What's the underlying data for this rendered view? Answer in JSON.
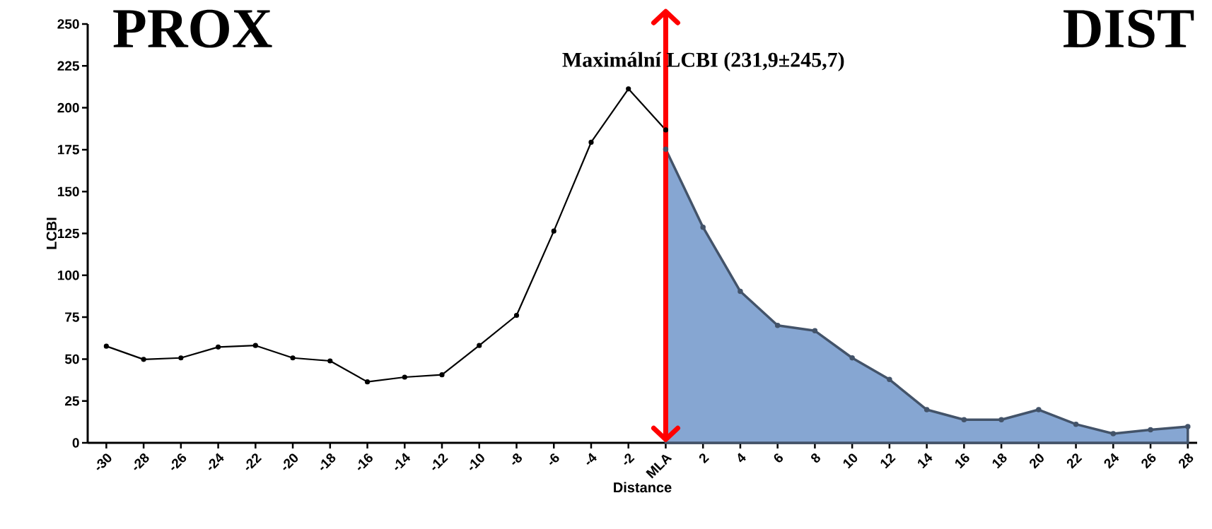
{
  "chart_data": {
    "type": "line",
    "x": [
      -30,
      -28,
      -26,
      -24,
      -22,
      -20,
      -18,
      -16,
      -14,
      -12,
      -10,
      -8,
      -6,
      -4,
      -2,
      0,
      2,
      4,
      6,
      8,
      10,
      12,
      14,
      16,
      18,
      20,
      22,
      24,
      26,
      28
    ],
    "xlim": [
      -31,
      28.5
    ],
    "xticks": [
      -30,
      -28,
      -26,
      -24,
      -22,
      -20,
      -18,
      -16,
      -14,
      -12,
      -10,
      -8,
      -6,
      -4,
      -2,
      {
        "value": 0,
        "label": "MLA"
      },
      2,
      4,
      6,
      8,
      10,
      12,
      14,
      16,
      18,
      20,
      22,
      24,
      26,
      28
    ],
    "series": [
      {
        "color": "#000000",
        "values": [
          57.7,
          49.8,
          50.7,
          57.2,
          58.1,
          50.7,
          48.9,
          36.4,
          39.2,
          40.6,
          58.1,
          76.1,
          126.4,
          179.4,
          211.3,
          186.8,
          null,
          null,
          null,
          null,
          null,
          null,
          null,
          null,
          null,
          null,
          null,
          null,
          null,
          null
        ]
      },
      {
        "type": "area",
        "color": "#86a6d2",
        "values": [
          null,
          null,
          null,
          null,
          null,
          null,
          null,
          null,
          null,
          null,
          null,
          null,
          null,
          null,
          null,
          175.3,
          128.7,
          90.4,
          70.1,
          66.9,
          50.7,
          37.8,
          19.8,
          13.8,
          13.8,
          19.8,
          11.1,
          5.5,
          7.8,
          9.7
        ]
      }
    ],
    "ylim": [
      0,
      250
    ],
    "yticks": [
      0,
      25,
      50,
      75,
      100,
      125,
      150,
      175,
      200,
      225,
      250
    ],
    "xlabel": "Distance",
    "ylabel": "LCBI",
    "marker": "circle",
    "grid": false,
    "ref_lines": [
      {
        "axis": "x",
        "value": 0,
        "color": "#ff0000"
      }
    ],
    "annotations": [
      "PROX",
      "DIST",
      "Maximální LCBI (231,9±245,7)"
    ]
  }
}
